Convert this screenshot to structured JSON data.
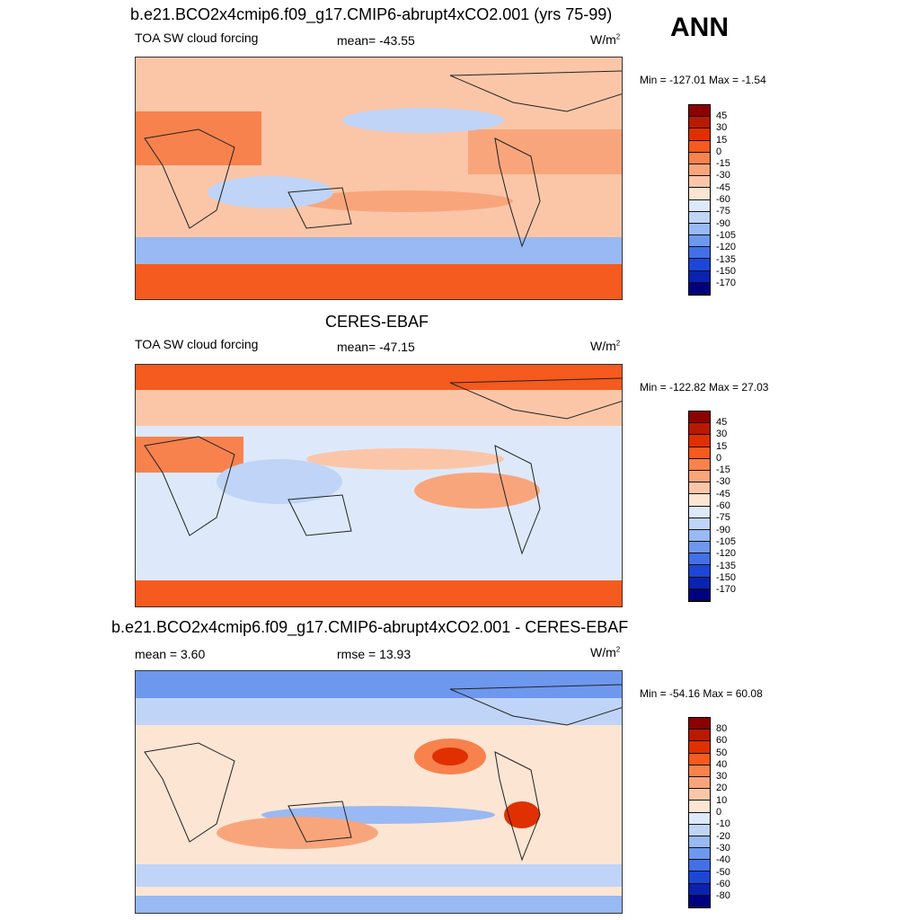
{
  "season": "ANN",
  "panel1": {
    "title": "b.e21.BCO2x4cmip6.f09_g17.CMIP6-abrupt4xCO2.001 (yrs 75-99)",
    "left": "TOA SW cloud forcing",
    "center": "mean= -43.55",
    "units": "W/m",
    "units_sup": "2",
    "minmax": "Min = -127.01 Max =  -1.54"
  },
  "panel2": {
    "title": "CERES-EBAF",
    "left": "TOA SW cloud forcing",
    "center": "mean= -47.15",
    "units": "W/m",
    "units_sup": "2",
    "minmax": "Min = -122.82 Max =  27.03"
  },
  "panel3": {
    "title": "b.e21.BCO2x4cmip6.f09_g17.CMIP6-abrupt4xCO2.001 - CERES-EBAF",
    "left": "mean =   3.60",
    "center": "rmse =  13.93",
    "units": "W/m",
    "units_sup": "2",
    "minmax": "Min = -54.16 Max =  60.08"
  },
  "colorbar_abs": {
    "labels": [
      "45",
      "30",
      "15",
      "0",
      "-15",
      "-30",
      "-45",
      "-60",
      "-75",
      "-90",
      "-105",
      "-120",
      "-135",
      "-150",
      "-170"
    ],
    "colors": [
      "#8b0000",
      "#b81a00",
      "#e03000",
      "#f55a1e",
      "#f7824d",
      "#f9a57c",
      "#fbc6a8",
      "#fde5d4",
      "#dde9fb",
      "#bfd4f7",
      "#98b9f3",
      "#6e98ee",
      "#4470e6",
      "#1e46d6",
      "#0a22b0",
      "#00007f"
    ]
  },
  "colorbar_diff": {
    "labels": [
      "80",
      "60",
      "50",
      "40",
      "30",
      "20",
      "10",
      "0",
      "-10",
      "-20",
      "-30",
      "-40",
      "-50",
      "-60",
      "-80"
    ],
    "colors": [
      "#8b0000",
      "#b81a00",
      "#e03000",
      "#f55a1e",
      "#f7824d",
      "#f9a57c",
      "#fbc6a8",
      "#fde5d4",
      "#dde9fb",
      "#bfd4f7",
      "#98b9f3",
      "#6e98ee",
      "#4470e6",
      "#1e46d6",
      "#0a22b0",
      "#00007f"
    ]
  }
}
